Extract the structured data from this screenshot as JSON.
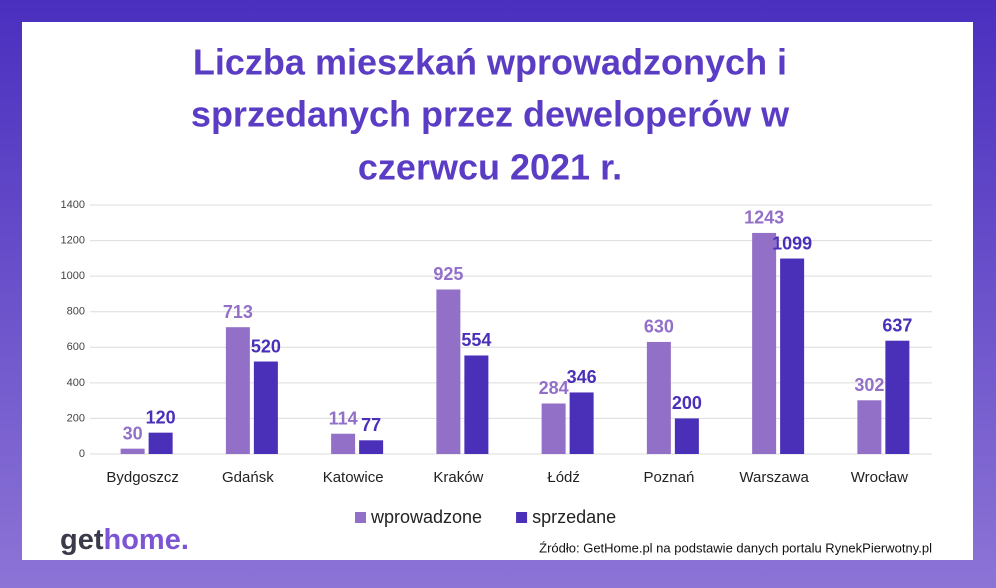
{
  "chart_data": {
    "type": "bar",
    "title": [
      "Liczba mieszkań wprowadzonych i",
      "sprzedanych przez deweloperów w",
      "czerwcu 2021 r."
    ],
    "categories": [
      "Bydgoszcz",
      "Gdańsk",
      "Katowice",
      "Kraków",
      "Łódź",
      "Poznań",
      "Warszawa",
      "Wrocław"
    ],
    "series": [
      {
        "name": "wprowadzone",
        "color": "#9370c8",
        "values": [
          30,
          713,
          114,
          925,
          284,
          630,
          1243,
          302
        ]
      },
      {
        "name": "sprzedane",
        "color": "#4a2fb8",
        "values": [
          120,
          520,
          77,
          554,
          346,
          200,
          1099,
          637
        ]
      }
    ],
    "ylim": [
      0,
      1400
    ],
    "yticks": [
      0,
      200,
      400,
      600,
      800,
      1000,
      1200,
      1400
    ],
    "grid": true,
    "legend": "bottom"
  },
  "logo": [
    "get",
    "home."
  ],
  "source": "Źródło: GetHome.pl na podstawie danych portalu RynekPierwotny.pl"
}
